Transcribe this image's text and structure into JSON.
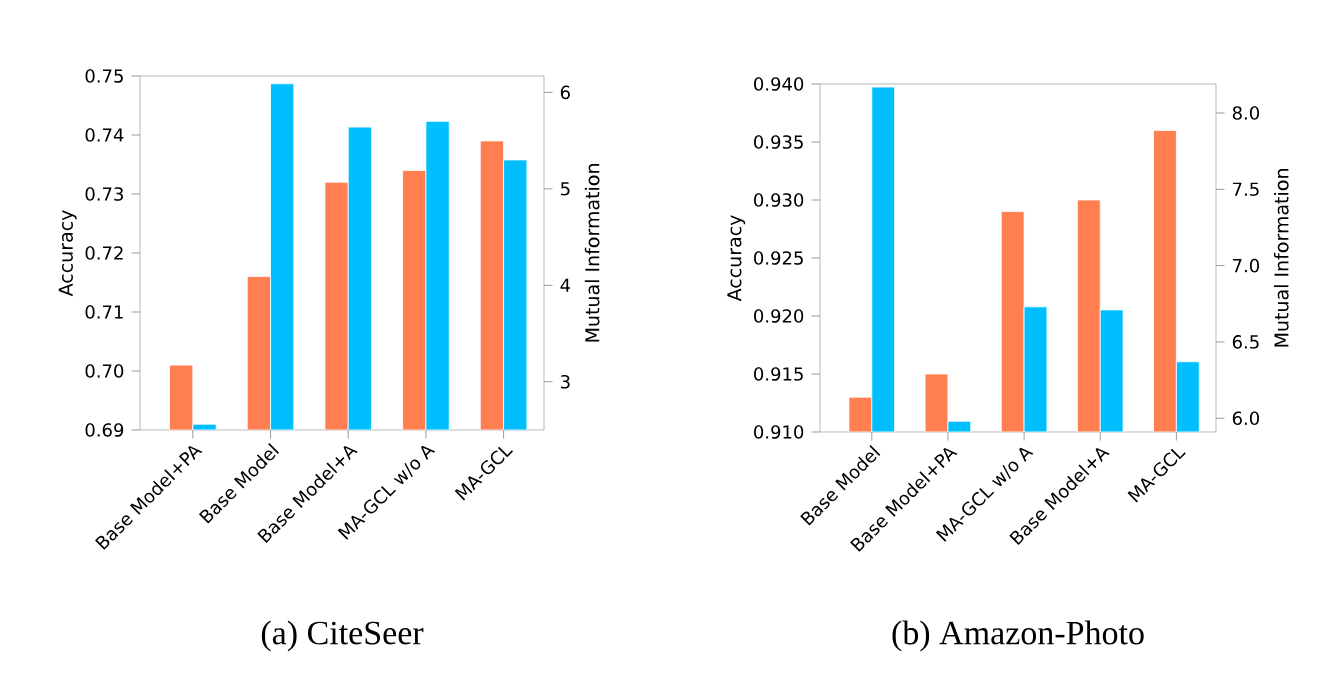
{
  "chart_data": [
    {
      "type": "bar",
      "title": "(a)  CiteSeer",
      "ylabel": "Accuracy",
      "y2label": "Mutual Information",
      "categories": [
        "Base Model+PA",
        "Base Model",
        "Base Model+A",
        "MA-GCL w/o A",
        "MA-GCL"
      ],
      "series": [
        {
          "color": "#ff7f50",
          "values": [
            0.701,
            0.716,
            0.732,
            0.734,
            0.739
          ]
        },
        {
          "color": "#00bfff",
          "axis": "y2",
          "values": [
            2.56,
            6.09,
            5.64,
            5.7,
            5.3
          ]
        }
      ],
      "ylim": [
        0.69,
        0.75
      ],
      "yticks": [
        0.69,
        {
          "value": 0.7,
          "label": "0.70"
        },
        0.71,
        0.72,
        0.73,
        0.74,
        0.75
      ],
      "y2lim": [
        2.5,
        6.17
      ],
      "y2ticks": [
        3,
        4,
        5,
        6
      ]
    },
    {
      "type": "bar",
      "title": "(b)  Amazon-Photo",
      "ylabel": "Accuracy",
      "y2label": "Mutual Information",
      "categories": [
        "Base Model",
        "Base Model+PA",
        "MA-GCL w/o A",
        "Base Model+A",
        "MA-GCL"
      ],
      "series": [
        {
          "color": "#ff7f50",
          "values": [
            0.913,
            0.915,
            0.929,
            0.93,
            0.936
          ]
        },
        {
          "color": "#00bfff",
          "axis": "y2",
          "values": [
            8.17,
            5.98,
            6.73,
            6.71,
            6.37
          ]
        }
      ],
      "ylim": [
        0.91,
        0.94
      ],
      "yticks": [
        {
          "value": 0.91,
          "label": "0.910"
        },
        0.915,
        {
          "value": 0.92,
          "label": "0.920"
        },
        0.925,
        {
          "value": 0.93,
          "label": "0.930"
        },
        0.935,
        {
          "value": 0.94,
          "label": "0.940"
        }
      ],
      "y2lim": [
        5.91,
        8.19
      ],
      "y2ticks": [
        {
          "value": 6,
          "label": "6.0"
        },
        {
          "value": 6.5,
          "label": "6.5"
        },
        {
          "value": 7,
          "label": "7.0"
        },
        {
          "value": 7.5,
          "label": "7.5"
        },
        {
          "value": 8,
          "label": "8.0"
        }
      ]
    }
  ]
}
